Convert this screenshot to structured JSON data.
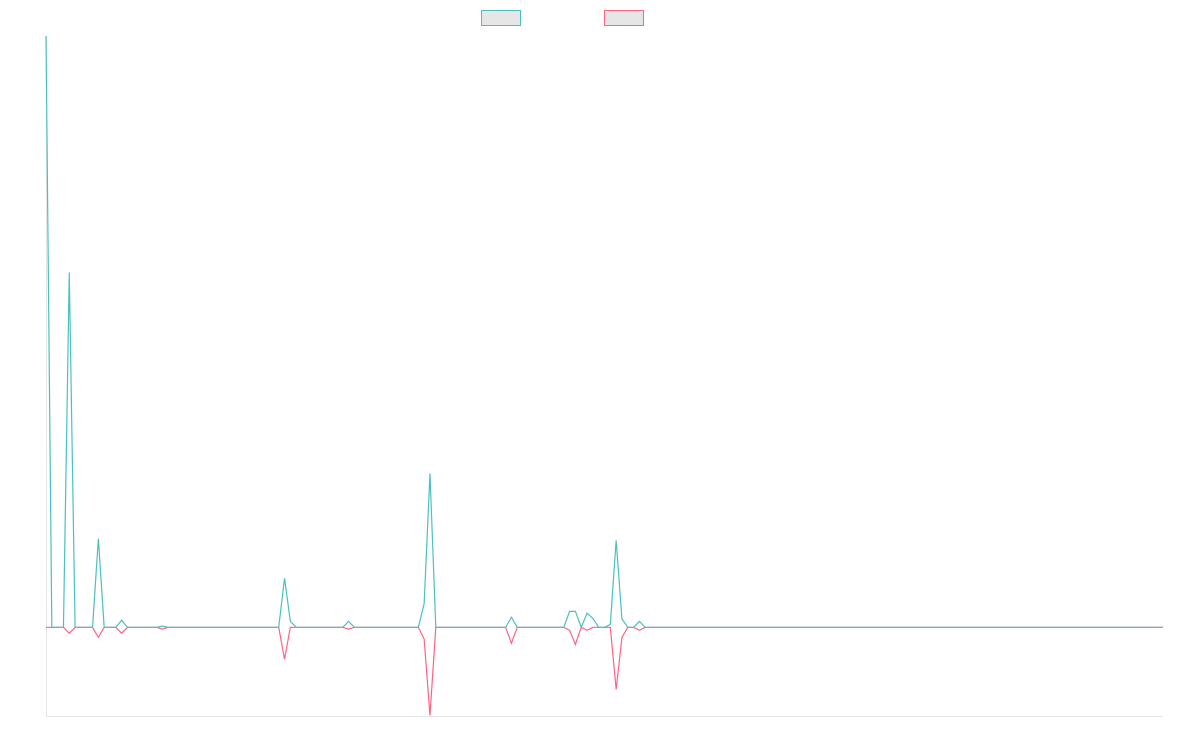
{
  "chart_data": {
    "type": "line",
    "ylim": [
      -0.15,
      1
    ],
    "series": [
      {
        "color": "#ff6384",
        "values": [
          0,
          0,
          0,
          0,
          -0.01,
          0,
          0,
          0,
          0,
          -0.017,
          0,
          0,
          0,
          -0.01,
          0,
          0,
          0,
          0,
          0,
          0,
          -0.003,
          0,
          0,
          0,
          0,
          0,
          0,
          0,
          0,
          0,
          0,
          0,
          0,
          0,
          0,
          0,
          0,
          0,
          0,
          0,
          0,
          -0.054,
          0,
          0,
          0,
          0,
          0,
          0,
          0,
          0,
          0,
          0,
          -0.003,
          0,
          0,
          0,
          0,
          0,
          0,
          0,
          0,
          0,
          0,
          0,
          0,
          -0.02,
          -0.149,
          0,
          0,
          0,
          0,
          0,
          0,
          0,
          0,
          0,
          0,
          0,
          0,
          0,
          -0.027,
          0,
          0,
          0,
          0,
          0,
          0,
          0,
          0,
          0,
          -0.005,
          -0.029,
          0,
          -0.005,
          0,
          0,
          0,
          0,
          -0.105,
          -0.017,
          0,
          0,
          -0.005,
          0,
          0,
          0,
          0,
          0,
          0,
          0,
          0,
          0,
          0,
          0,
          0,
          0,
          0,
          0,
          0,
          0,
          0,
          0,
          0,
          0,
          0,
          0,
          0,
          0,
          0,
          0,
          0,
          0,
          0,
          0,
          0,
          0,
          0,
          0,
          0,
          0,
          0,
          0,
          0,
          0,
          0,
          0,
          0,
          0,
          0,
          0,
          0,
          0,
          0,
          0,
          0,
          0,
          0,
          0,
          0,
          0,
          0,
          0,
          0,
          0,
          0,
          0,
          0,
          0,
          0,
          0,
          0,
          0,
          0,
          0,
          0,
          0,
          0,
          0,
          0,
          0,
          0,
          0,
          0,
          0,
          0,
          0,
          0,
          0,
          0,
          0,
          0,
          0,
          0
        ]
      },
      {
        "color": "#4bc0c0",
        "values": [
          1,
          0,
          0,
          0,
          0.6,
          0,
          0,
          0,
          0,
          0.15,
          0,
          0,
          0,
          0.012,
          0,
          0,
          0,
          0,
          0,
          0,
          0.002,
          0,
          0,
          0,
          0,
          0,
          0,
          0,
          0,
          0,
          0,
          0,
          0,
          0,
          0,
          0,
          0,
          0,
          0,
          0,
          0,
          0.083,
          0.01,
          0,
          0,
          0,
          0,
          0,
          0,
          0,
          0,
          0,
          0.01,
          0,
          0,
          0,
          0,
          0,
          0,
          0,
          0,
          0,
          0,
          0,
          0,
          0.04,
          0.26,
          0,
          0,
          0,
          0,
          0,
          0,
          0,
          0,
          0,
          0,
          0,
          0,
          0,
          0.017,
          0,
          0,
          0,
          0,
          0,
          0,
          0,
          0,
          0,
          0.027,
          0.027,
          0,
          0.024,
          0.015,
          0,
          0,
          0.005,
          0.147,
          0.014,
          0,
          0,
          0.01,
          0,
          0,
          0,
          0,
          0,
          0,
          0,
          0,
          0,
          0,
          0,
          0,
          0,
          0,
          0,
          0,
          0,
          0,
          0,
          0,
          0,
          0,
          0,
          0,
          0,
          0,
          0,
          0,
          0,
          0,
          0,
          0,
          0,
          0,
          0,
          0,
          0,
          0,
          0,
          0,
          0,
          0,
          0,
          0,
          0,
          0,
          0,
          0,
          0,
          0,
          0,
          0,
          0,
          0,
          0,
          0,
          0,
          0,
          0,
          0,
          0,
          0,
          0,
          0,
          0,
          0,
          0,
          0,
          0,
          0,
          0,
          0,
          0,
          0,
          0,
          0,
          0,
          0,
          0,
          0,
          0,
          0,
          0,
          0,
          0,
          0,
          0,
          0,
          0,
          0
        ]
      }
    ]
  }
}
